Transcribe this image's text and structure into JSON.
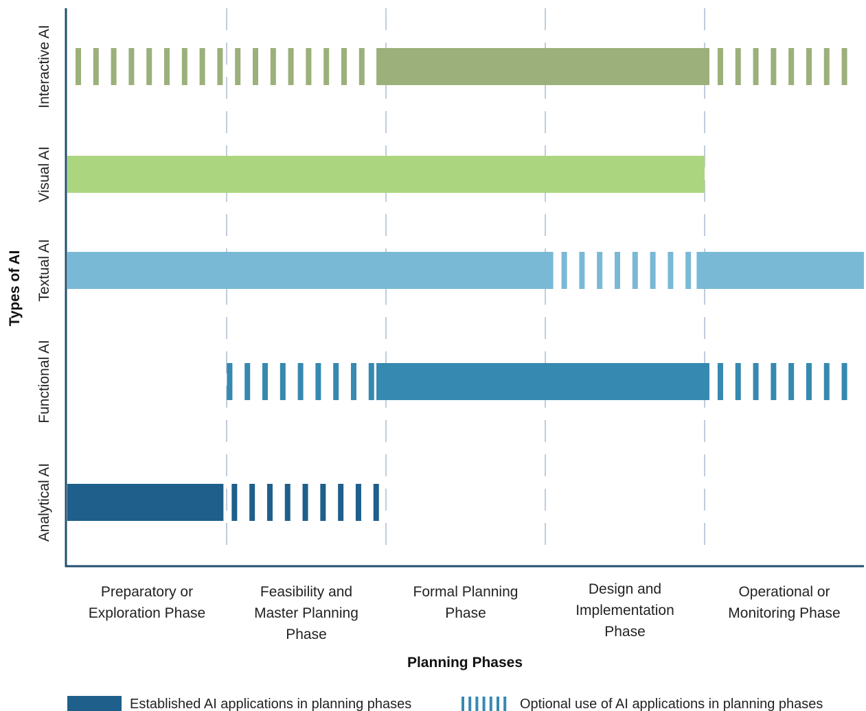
{
  "chart_data": {
    "type": "bar",
    "title": "",
    "xlabel": "Planning Phases",
    "ylabel": "Types of AI",
    "phases": [
      [
        "Preparatory or",
        "Exploration Phase"
      ],
      [
        "Feasibility and",
        "Master Planning",
        "Phase"
      ],
      [
        "Formal Planning",
        "Phase"
      ],
      [
        "Design and",
        "Implementation",
        "Phase"
      ],
      [
        "Operational or",
        "Monitoring Phase"
      ]
    ],
    "categories": [
      "Interactive AI",
      "Visual AI",
      "Textual AI",
      "Functional AI",
      "Analytical AI"
    ],
    "series": [
      {
        "name": "Interactive AI",
        "color": "#9bb07a",
        "dash_color": "#9bb07a",
        "segments": [
          {
            "start": 0,
            "end": 1.94,
            "type": "optional"
          },
          {
            "start": 1.94,
            "end": 4.03,
            "type": "established"
          },
          {
            "start": 4.03,
            "end": 5,
            "type": "optional"
          }
        ]
      },
      {
        "name": "Visual AI",
        "color": "#acd580",
        "segments": [
          {
            "start": 0,
            "end": 4,
            "type": "established"
          }
        ]
      },
      {
        "name": "Textual AI",
        "color": "#79b9d6",
        "segments": [
          {
            "start": 0,
            "end": 3.05,
            "type": "established"
          },
          {
            "start": 3.05,
            "end": 3.95,
            "type": "optional"
          },
          {
            "start": 3.95,
            "end": 5,
            "type": "established"
          }
        ]
      },
      {
        "name": "Functional AI",
        "color": "#3689b0",
        "segments": [
          {
            "start": 0.95,
            "end": 1.94,
            "type": "optional"
          },
          {
            "start": 1.94,
            "end": 4.03,
            "type": "established"
          },
          {
            "start": 4.03,
            "end": 5,
            "type": "optional"
          }
        ]
      },
      {
        "name": "Analytical AI",
        "color": "#1e5f8b",
        "segments": [
          {
            "start": 0,
            "end": 0.98,
            "type": "established"
          },
          {
            "start": 0.98,
            "end": 1.98,
            "type": "optional"
          }
        ]
      }
    ],
    "legend": {
      "established": "Established AI applications in planning phases",
      "optional": "Optional use of AI applications in planning phases",
      "color": "#1e5f8b",
      "placement": "bottom"
    },
    "grid": "dashed vertical phase dividers"
  }
}
